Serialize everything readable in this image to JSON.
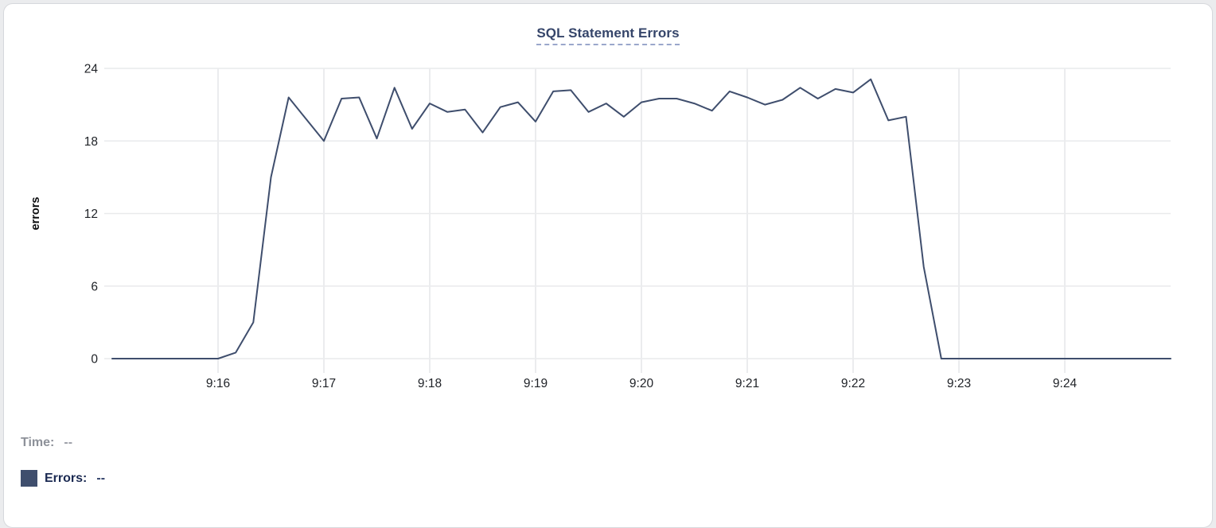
{
  "page": {
    "background": "#ebecee",
    "card_background": "#ffffff",
    "card_border": "#d6d8dc"
  },
  "chart_data": {
    "type": "line",
    "title": "SQL Statement Errors",
    "xlabel": "",
    "ylabel": "errors",
    "ylim": [
      0,
      24
    ],
    "yticks": [
      0,
      6,
      12,
      18,
      24
    ],
    "x_range": [
      "9:15:00",
      "9:25:00"
    ],
    "sample_interval_seconds": 10,
    "x_tick_labels": [
      "9:16",
      "9:17",
      "9:18",
      "9:19",
      "9:20",
      "9:21",
      "9:22",
      "9:23",
      "9:24"
    ],
    "grid": true,
    "legend_position": "bottom-left",
    "line_color": "#3f4e6d",
    "series": [
      {
        "name": "Errors",
        "values": [
          0,
          0,
          0,
          0,
          0,
          0,
          0,
          0.5,
          3,
          15,
          21.6,
          19.8,
          18,
          21.5,
          21.6,
          18.2,
          22.4,
          19,
          21.1,
          20.4,
          20.6,
          18.7,
          20.8,
          21.2,
          19.6,
          22.1,
          22.2,
          20.4,
          21.1,
          20,
          21.2,
          21.5,
          21.5,
          21.1,
          20.5,
          22.1,
          21.6,
          21,
          21.4,
          22.4,
          21.5,
          22.3,
          22,
          23.1,
          19.7,
          20,
          7.6,
          0,
          0,
          0,
          0,
          0,
          0,
          0,
          0,
          0,
          0,
          0,
          0,
          0,
          0
        ]
      }
    ]
  },
  "legend": {
    "time_label": "Time:",
    "time_value": "--",
    "errors_label": "Errors:",
    "errors_value": "--",
    "swatch_color": "#3f4e6d",
    "time_label_color": "#8d9199",
    "errors_label_color": "#1b2a52"
  }
}
